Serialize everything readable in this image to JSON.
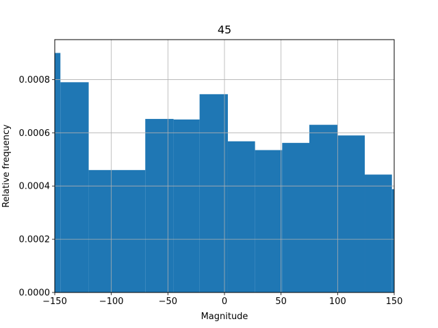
{
  "chart_data": {
    "type": "bar",
    "title": "45",
    "xlabel": "Magnitude",
    "ylabel": "Relative frequency",
    "xlim": [
      -150,
      150
    ],
    "ylim": [
      0,
      0.00095
    ],
    "x_ticks": [
      -150,
      -100,
      -50,
      0,
      50,
      100,
      150
    ],
    "x_tick_labels": [
      "−150",
      "−100",
      "−50",
      "0",
      "50",
      "100",
      "150"
    ],
    "y_ticks": [
      0,
      0.0002,
      0.0004,
      0.0006,
      0.0008
    ],
    "y_tick_labels": [
      "0.0000",
      "0.0002",
      "0.0004",
      "0.0006",
      "0.0008"
    ],
    "grid": true,
    "bar_color": "#1f77b4",
    "bins": [
      {
        "x0": -150,
        "x1": -145,
        "value": 0.0009
      },
      {
        "x0": -145,
        "x1": -120,
        "value": 0.00079
      },
      {
        "x0": -120,
        "x1": -70,
        "value": 0.00046
      },
      {
        "x0": -70,
        "x1": -45,
        "value": 0.000652
      },
      {
        "x0": -45,
        "x1": -22,
        "value": 0.00065
      },
      {
        "x0": -22,
        "x1": 3,
        "value": 0.000745
      },
      {
        "x0": 3,
        "x1": 27,
        "value": 0.000568
      },
      {
        "x0": 27,
        "x1": 51,
        "value": 0.000535
      },
      {
        "x0": 51,
        "x1": 75,
        "value": 0.000562
      },
      {
        "x0": 75,
        "x1": 100,
        "value": 0.00063
      },
      {
        "x0": 100,
        "x1": 124,
        "value": 0.00059
      },
      {
        "x0": 124,
        "x1": 148,
        "value": 0.000443
      },
      {
        "x0": 148,
        "x1": 150,
        "value": 0.000388
      }
    ]
  }
}
